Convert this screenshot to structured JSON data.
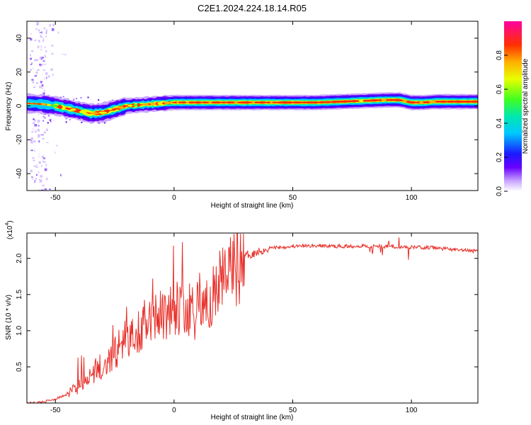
{
  "figure": {
    "title": "C2E1.2024.224.18.14.R05"
  },
  "chart_data": [
    {
      "type": "heatmap",
      "xlabel": "Height of straight line (km)",
      "ylabel": "Frequency (Hz)",
      "xlim": [
        -62,
        128
      ],
      "ylim": [
        -50,
        50
      ],
      "xticks": [
        -50,
        0,
        50,
        100
      ],
      "yticks": [
        -40,
        -20,
        0,
        20,
        40
      ],
      "colorbar": {
        "label": "Normalized spectral amplitude",
        "range": [
          0,
          1
        ],
        "ticks": [
          0.0,
          0.2,
          0.4,
          0.6,
          0.8
        ],
        "tick_labels": [
          "0.0",
          "0.2",
          "0.4",
          "0.6",
          "0.8"
        ]
      },
      "ridge": {
        "description_points_km": [
          -62,
          -55,
          -50,
          -45,
          -40,
          -35,
          -30,
          -25,
          -20,
          -15,
          -10,
          -5,
          0,
          5,
          10,
          20,
          30,
          40,
          50,
          60,
          70,
          80,
          90,
          95,
          100,
          105,
          110,
          120,
          128
        ],
        "center_freq_hz": [
          1.5,
          1,
          0,
          -1.5,
          -3,
          -4.5,
          -4,
          -2,
          0,
          0.5,
          1,
          1.5,
          2,
          2,
          2,
          2,
          2,
          2,
          2,
          2,
          2.5,
          3,
          3.5,
          3.5,
          2,
          2,
          2.5,
          2.5,
          2.5
        ]
      }
    },
    {
      "type": "line",
      "xlabel": "Height of straight line (km)",
      "ylabel": "SNR (10 * v/v)",
      "multiplier_label": "(x10",
      "multiplier_exp": "4",
      "xlim": [
        -62,
        128
      ],
      "ylim": [
        0,
        2.35
      ],
      "xticks": [
        -50,
        0,
        50,
        100
      ],
      "yticks": [
        0.5,
        1.0,
        1.5,
        2.0
      ],
      "ytick_labels": [
        "0.5",
        "1.0",
        "1.5",
        "2.0"
      ],
      "line_color": "#e8302a",
      "envelope_km": [
        -62,
        -55,
        -50,
        -45,
        -40,
        -35,
        -30,
        -25,
        -20,
        -15,
        -10,
        -5,
        0,
        5,
        10,
        15,
        20,
        25,
        30,
        35,
        40,
        50,
        60,
        70,
        80,
        90,
        100,
        110,
        120,
        128
      ],
      "envelope_snr": [
        0.0,
        0.02,
        0.06,
        0.12,
        0.25,
        0.45,
        0.55,
        0.75,
        0.95,
        1.1,
        1.2,
        1.3,
        1.45,
        1.3,
        1.4,
        1.5,
        1.75,
        1.95,
        2.05,
        2.1,
        2.15,
        2.17,
        2.18,
        2.17,
        2.18,
        2.17,
        2.16,
        2.15,
        2.12,
        2.1
      ]
    }
  ]
}
